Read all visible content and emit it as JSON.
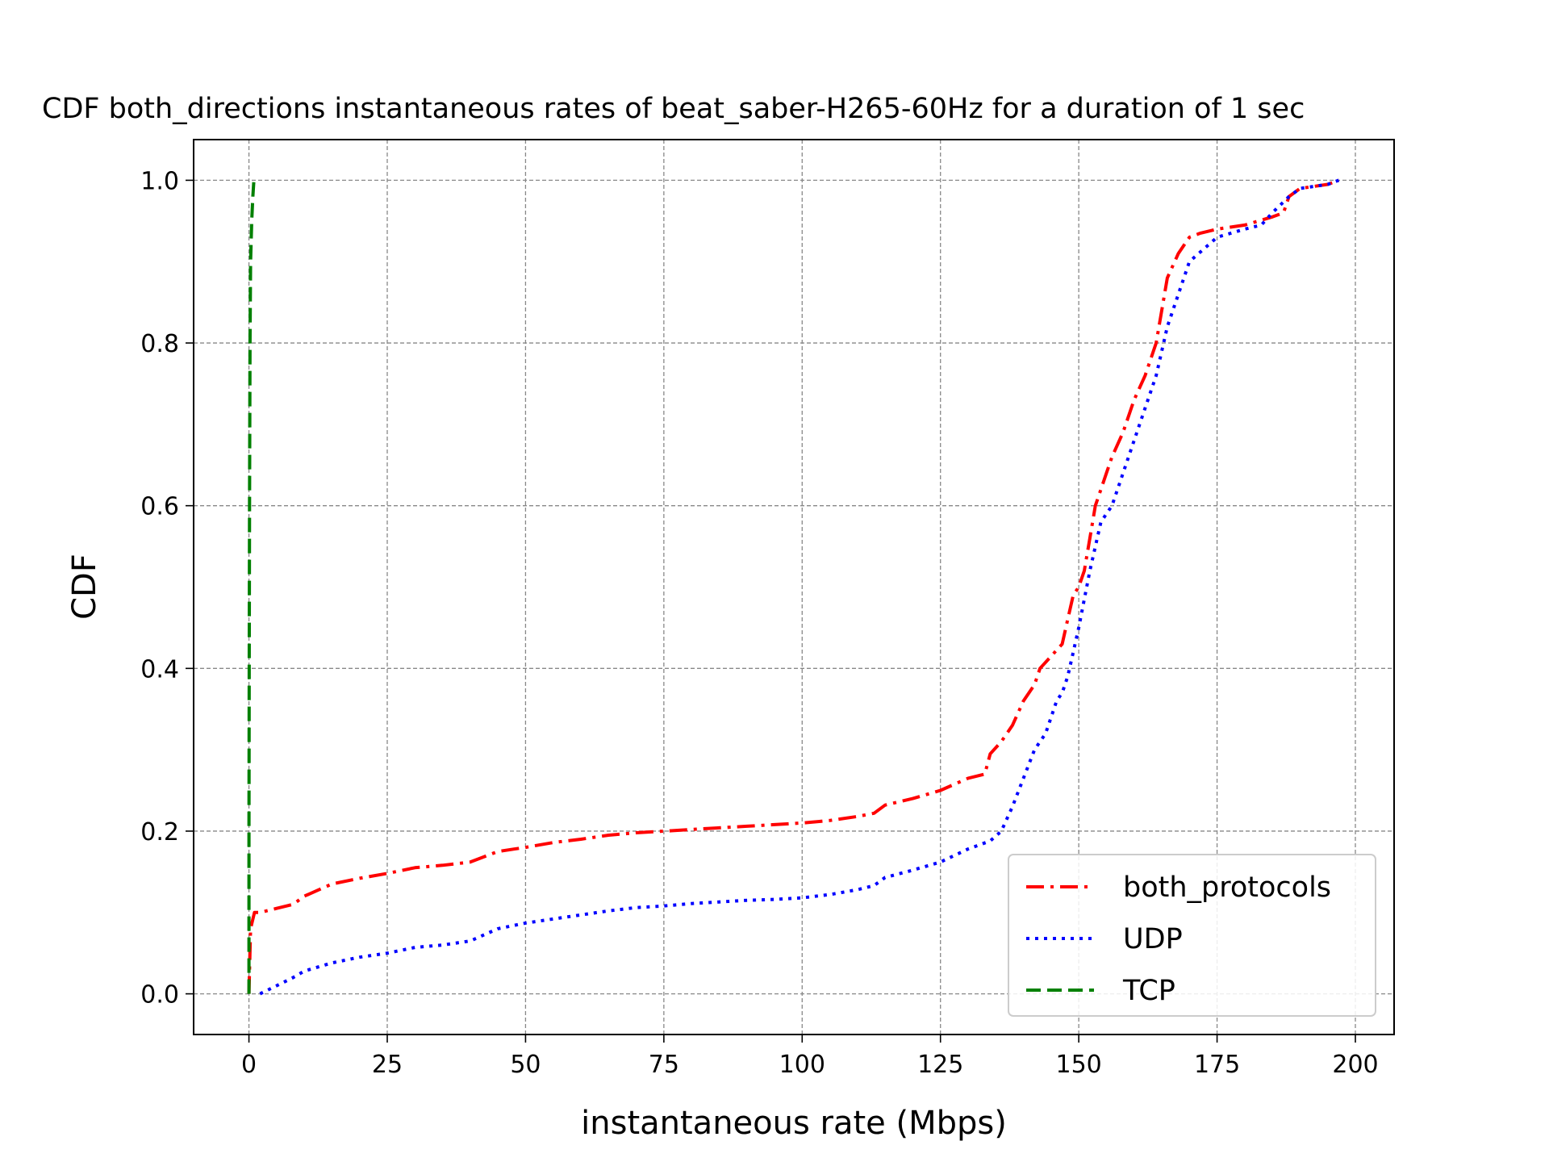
{
  "chart_data": {
    "type": "line",
    "title": "CDF both_directions instantaneous rates of beat_saber-H265-60Hz for a duration of 1 sec",
    "xlabel": "instantaneous rate (Mbps)",
    "ylabel": "CDF",
    "xlim": [
      -10,
      207
    ],
    "ylim": [
      -0.05,
      1.05
    ],
    "xticks": [
      0,
      25,
      50,
      75,
      100,
      125,
      150,
      175,
      200
    ],
    "yticks": [
      0.0,
      0.2,
      0.4,
      0.6,
      0.8,
      1.0
    ],
    "xtick_labels": [
      "0",
      "25",
      "50",
      "75",
      "100",
      "125",
      "150",
      "175",
      "200"
    ],
    "ytick_labels": [
      "0.0",
      "0.2",
      "0.4",
      "0.6",
      "0.8",
      "1.0"
    ],
    "grid": true,
    "legend_position": "lower-right",
    "series": [
      {
        "name": "both_protocols",
        "color": "#ff0000",
        "style": "dashdot",
        "x": [
          0,
          0.1,
          0.3,
          1,
          2,
          5,
          8,
          10,
          15,
          20,
          25,
          30,
          35,
          40,
          45,
          50,
          55,
          60,
          65,
          70,
          75,
          80,
          85,
          90,
          95,
          100,
          105,
          110,
          113,
          115,
          120,
          125,
          130,
          133,
          134,
          136,
          138,
          140,
          142,
          143,
          145,
          147,
          148,
          149,
          150,
          151,
          152,
          153,
          154,
          155,
          156,
          158,
          160,
          162,
          164,
          165,
          166,
          168,
          170,
          172,
          175,
          180,
          185,
          187,
          188,
          190,
          195,
          197
        ],
        "y": [
          0.0,
          0.03,
          0.08,
          0.1,
          0.1,
          0.105,
          0.11,
          0.12,
          0.135,
          0.142,
          0.148,
          0.155,
          0.158,
          0.162,
          0.175,
          0.18,
          0.186,
          0.19,
          0.195,
          0.198,
          0.2,
          0.202,
          0.204,
          0.206,
          0.208,
          0.21,
          0.213,
          0.218,
          0.222,
          0.232,
          0.24,
          0.25,
          0.265,
          0.27,
          0.295,
          0.31,
          0.33,
          0.36,
          0.38,
          0.4,
          0.415,
          0.43,
          0.46,
          0.49,
          0.5,
          0.52,
          0.56,
          0.6,
          0.62,
          0.64,
          0.66,
          0.69,
          0.73,
          0.76,
          0.8,
          0.84,
          0.88,
          0.91,
          0.93,
          0.935,
          0.94,
          0.945,
          0.955,
          0.96,
          0.98,
          0.99,
          0.995,
          1.0
        ]
      },
      {
        "name": "UDP",
        "color": "#0000ff",
        "style": "dotted",
        "x": [
          2,
          5,
          8,
          10,
          15,
          20,
          25,
          30,
          35,
          40,
          45,
          50,
          55,
          60,
          65,
          70,
          75,
          80,
          85,
          90,
          95,
          100,
          105,
          110,
          113,
          115,
          120,
          125,
          130,
          134,
          136,
          138,
          140,
          142,
          144,
          145,
          146,
          147,
          148,
          149,
          150,
          152,
          154,
          156,
          158,
          160,
          162,
          164,
          166,
          168,
          170,
          175,
          180,
          183,
          185,
          188,
          190,
          195,
          197
        ],
        "y": [
          0.0,
          0.01,
          0.02,
          0.028,
          0.038,
          0.045,
          0.05,
          0.057,
          0.06,
          0.065,
          0.08,
          0.087,
          0.092,
          0.097,
          0.102,
          0.106,
          0.108,
          0.111,
          0.113,
          0.115,
          0.116,
          0.118,
          0.122,
          0.128,
          0.133,
          0.143,
          0.152,
          0.162,
          0.178,
          0.188,
          0.2,
          0.23,
          0.265,
          0.3,
          0.32,
          0.34,
          0.36,
          0.37,
          0.39,
          0.42,
          0.45,
          0.52,
          0.58,
          0.6,
          0.64,
          0.68,
          0.72,
          0.76,
          0.82,
          0.86,
          0.9,
          0.93,
          0.94,
          0.945,
          0.96,
          0.98,
          0.99,
          0.995,
          1.0
        ]
      },
      {
        "name": "TCP",
        "color": "#008000",
        "style": "dashed",
        "x": [
          0,
          0,
          0.05,
          0.1,
          0.2,
          0.3,
          0.5,
          0.7,
          0.9
        ],
        "y": [
          0.0,
          0.2,
          0.4,
          0.6,
          0.8,
          0.9,
          0.95,
          0.98,
          1.0
        ]
      }
    ]
  }
}
